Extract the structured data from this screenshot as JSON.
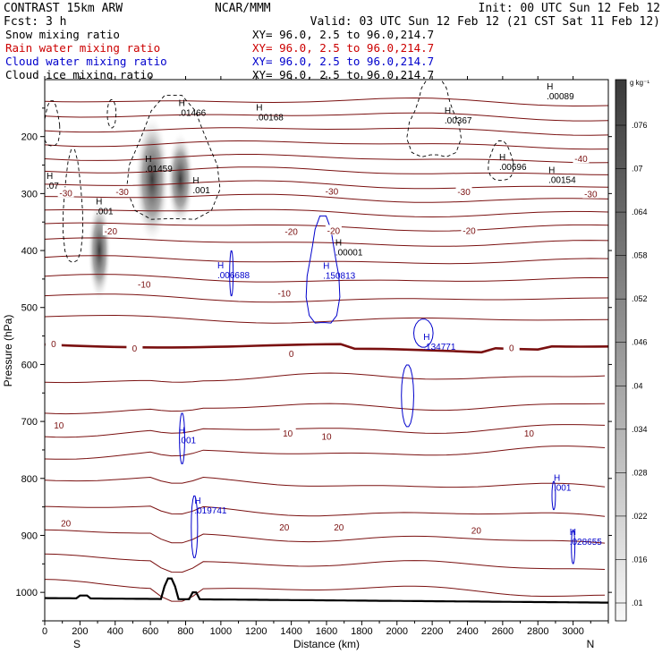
{
  "header": {
    "model": "CONTRAST 15km ARW",
    "forecast": "Fcst:    3 h",
    "source": "NCAR/MMM",
    "init": "Init: 00 UTC Sun 12 Feb 12",
    "valid": "Valid: 03 UTC Sun 12 Feb 12 (21 CST Sat 11 Feb 12)",
    "fields": [
      {
        "name": "Snow mixing ratio",
        "xy": "XY=  96.0,  2.5 to  96.0,214.7",
        "color": "#000000"
      },
      {
        "name": "Rain water mixing ratio",
        "xy": "XY=  96.0,  2.5 to  96.0,214.7",
        "color": "#cc0000"
      },
      {
        "name": "Cloud water mixing ratio",
        "xy": "XY=  96.0,  2.5 to  96.0,214.7",
        "color": "#0000cc"
      },
      {
        "name": "Cloud ice mixing ratio",
        "xy": "XY=  96.0,  2.5 to  96.0,214.7",
        "color": "#000000"
      }
    ]
  },
  "chart_data": {
    "type": "cross-section",
    "xlabel": "Distance (km)",
    "ylabel": "Pressure (hPa)",
    "x_ticks": [
      0,
      200,
      400,
      600,
      800,
      1000,
      1200,
      1400,
      1600,
      1800,
      2000,
      2200,
      2400,
      2600,
      2800,
      3000
    ],
    "xlim": [
      0,
      3200
    ],
    "y_ticks": [
      200,
      300,
      400,
      500,
      600,
      700,
      800,
      900,
      1000
    ],
    "ylim": [
      100,
      1050
    ],
    "end_labels": {
      "left": "S",
      "right": "N"
    },
    "colorbar": {
      "unit": "g kg⁻¹",
      "ticks": [
        ".01",
        ".016",
        ".022",
        ".028",
        ".034",
        ".04",
        ".046",
        ".052",
        ".058",
        ".064",
        ".07",
        ".076"
      ],
      "min": 0.007,
      "max": 0.082
    },
    "temperature_contours": {
      "color": "#7a1010",
      "labels": [
        {
          "text": "-40",
          "x": 3045,
          "p": 240
        },
        {
          "text": "-30",
          "x": 120,
          "p": 300
        },
        {
          "text": "-30",
          "x": 440,
          "p": 298
        },
        {
          "text": "-30",
          "x": 1630,
          "p": 297
        },
        {
          "text": "-30",
          "x": 2380,
          "p": 298
        },
        {
          "text": "-30",
          "x": 3100,
          "p": 302
        },
        {
          "text": "-20",
          "x": 375,
          "p": 367
        },
        {
          "text": "-20",
          "x": 1400,
          "p": 368
        },
        {
          "text": "-20",
          "x": 1640,
          "p": 366
        },
        {
          "text": "-20",
          "x": 2410,
          "p": 366
        },
        {
          "text": "-10",
          "x": 565,
          "p": 460
        },
        {
          "text": "-10",
          "x": 1360,
          "p": 476
        },
        {
          "text": "0",
          "x": 50,
          "p": 565
        },
        {
          "text": "0",
          "x": 510,
          "p": 573
        },
        {
          "text": "0",
          "x": 1400,
          "p": 582
        },
        {
          "text": "0",
          "x": 2650,
          "p": 572
        },
        {
          "text": "10",
          "x": 80,
          "p": 708
        },
        {
          "text": "10",
          "x": 1380,
          "p": 722
        },
        {
          "text": "10",
          "x": 1600,
          "p": 727
        },
        {
          "text": "10",
          "x": 2750,
          "p": 722
        },
        {
          "text": "20",
          "x": 120,
          "p": 880
        },
        {
          "text": "20",
          "x": 1360,
          "p": 887
        },
        {
          "text": "20",
          "x": 1670,
          "p": 887
        },
        {
          "text": "20",
          "x": 2450,
          "p": 892
        }
      ]
    },
    "cloud_ice_maxima": [
      {
        "label": ".01466",
        "x": 760,
        "p": 162
      },
      {
        "label": ".00168",
        "x": 1200,
        "p": 170
      },
      {
        "label": ".01459",
        "x": 570,
        "p": 260
      },
      {
        "label": ".001",
        "x": 840,
        "p": 298
      },
      {
        "label": ".001",
        "x": 290,
        "p": 335
      },
      {
        "label": ".00001",
        "x": 1650,
        "p": 407
      },
      {
        "label": ".00367",
        "x": 2270,
        "p": 175
      },
      {
        "label": ".00089",
        "x": 2850,
        "p": 133
      },
      {
        "label": ".00696",
        "x": 2580,
        "p": 257
      },
      {
        "label": ".00154",
        "x": 2860,
        "p": 280
      },
      {
        "label": ".07",
        "x": 10,
        "p": 290
      }
    ],
    "cloud_water_maxima": [
      {
        "label": ".006688",
        "x": 980,
        "p": 447
      },
      {
        "label": ".150813",
        "x": 1580,
        "p": 448
      },
      {
        "label": ".134771",
        "x": 2150,
        "p": 573
      },
      {
        "label": ".001",
        "x": 760,
        "p": 737
      },
      {
        "label": ".019741",
        "x": 850,
        "p": 860
      },
      {
        "label": ".001",
        "x": 2890,
        "p": 820
      },
      {
        "label": ".028655",
        "x": 2980,
        "p": 915
      }
    ],
    "snow_max": 0.076
  }
}
